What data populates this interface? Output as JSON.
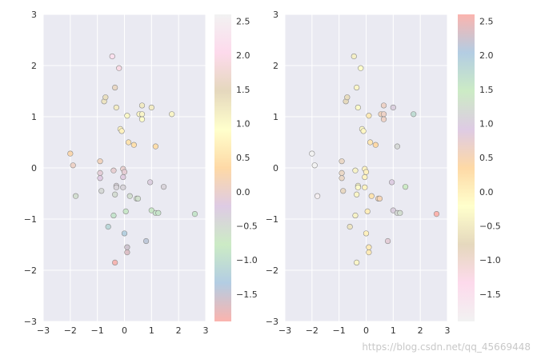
{
  "watermark": "https://blog.csdn.net/qq_45669448",
  "chart_data": [
    {
      "type": "scatter",
      "colormap": "Pastel1 (reversed)",
      "colormap_stops": [
        "#fbb4ae",
        "#b3cde3",
        "#ccebc5",
        "#decbe4",
        "#fed9a6",
        "#ffffcc",
        "#e5d8bd",
        "#fddaec",
        "#f2f2f2"
      ],
      "background_color": "#eaeaf2",
      "grid": true,
      "xlim": [
        -3,
        3
      ],
      "ylim": [
        -3,
        3
      ],
      "xticks": [
        "−3",
        "−2",
        "−1",
        "0",
        "1",
        "2",
        "3"
      ],
      "yticks": [
        "−3",
        "−2",
        "−1",
        "0",
        "1",
        "2",
        "3"
      ],
      "colorbar": {
        "range": [
          -1.9,
          2.6
        ],
        "tick_values": [
          2.5,
          2.0,
          1.5,
          1.0,
          0.5,
          0.0,
          -0.5,
          -1.0,
          -1.5
        ],
        "tick_labels": [
          "2.5",
          "2.0",
          "1.5",
          "1.0",
          "0.5",
          "0.0",
          "−0.5",
          "−1.0",
          "−1.5"
        ]
      },
      "color_by": "y",
      "points": [
        {
          "x": -2.0,
          "y": 0.28
        },
        {
          "x": -1.9,
          "y": 0.05
        },
        {
          "x": -1.8,
          "y": -0.55
        },
        {
          "x": -0.9,
          "y": 0.13
        },
        {
          "x": -0.9,
          "y": -0.1
        },
        {
          "x": -0.9,
          "y": -0.2
        },
        {
          "x": -0.85,
          "y": -0.45
        },
        {
          "x": -0.75,
          "y": 1.3
        },
        {
          "x": -0.7,
          "y": 1.38
        },
        {
          "x": -0.6,
          "y": -1.15
        },
        {
          "x": -0.45,
          "y": 2.18
        },
        {
          "x": -0.4,
          "y": -0.05
        },
        {
          "x": -0.4,
          "y": -0.93
        },
        {
          "x": -0.35,
          "y": 1.57
        },
        {
          "x": -0.3,
          "y": 1.18
        },
        {
          "x": -0.3,
          "y": -0.35
        },
        {
          "x": -0.3,
          "y": -0.38
        },
        {
          "x": -0.35,
          "y": -0.52
        },
        {
          "x": -0.35,
          "y": -1.85
        },
        {
          "x": -0.2,
          "y": 1.95
        },
        {
          "x": -0.15,
          "y": 0.76
        },
        {
          "x": -0.1,
          "y": 0.72
        },
        {
          "x": -0.05,
          "y": -0.02
        },
        {
          "x": -0.05,
          "y": -0.38
        },
        {
          "x": 0.0,
          "y": -0.08
        },
        {
          "x": -0.05,
          "y": -0.18
        },
        {
          "x": 0.0,
          "y": -1.28
        },
        {
          "x": 0.05,
          "y": -0.85
        },
        {
          "x": 0.1,
          "y": 1.02
        },
        {
          "x": 0.15,
          "y": 0.5
        },
        {
          "x": 0.1,
          "y": -1.55
        },
        {
          "x": 0.1,
          "y": -1.65
        },
        {
          "x": 0.2,
          "y": -0.55
        },
        {
          "x": 0.35,
          "y": 0.45
        },
        {
          "x": 0.45,
          "y": -0.6
        },
        {
          "x": 0.5,
          "y": -0.6
        },
        {
          "x": 0.55,
          "y": 1.05
        },
        {
          "x": 0.65,
          "y": 1.22
        },
        {
          "x": 0.65,
          "y": 1.05
        },
        {
          "x": 0.65,
          "y": 0.95
        },
        {
          "x": 0.8,
          "y": -1.43
        },
        {
          "x": 0.95,
          "y": -0.28
        },
        {
          "x": 1.0,
          "y": 1.18
        },
        {
          "x": 1.0,
          "y": -0.83
        },
        {
          "x": 1.15,
          "y": 0.42
        },
        {
          "x": 1.15,
          "y": -0.88
        },
        {
          "x": 1.25,
          "y": -0.88
        },
        {
          "x": 1.45,
          "y": -0.37
        },
        {
          "x": 1.75,
          "y": 1.05
        },
        {
          "x": 2.6,
          "y": -0.9
        }
      ]
    },
    {
      "type": "scatter",
      "colormap": "Pastel1",
      "colormap_stops": [
        "#f2f2f2",
        "#fddaec",
        "#e5d8bd",
        "#ffffcc",
        "#fed9a6",
        "#decbe4",
        "#ccebc5",
        "#b3cde3",
        "#fbb4ae"
      ],
      "background_color": "#eaeaf2",
      "grid": true,
      "xlim": [
        -3,
        3
      ],
      "ylim": [
        -3,
        3
      ],
      "xticks": [
        "−3",
        "−2",
        "−1",
        "0",
        "1",
        "2",
        "3"
      ],
      "yticks": [
        "−3",
        "−2",
        "−1",
        "0",
        "1",
        "2",
        "3"
      ],
      "colorbar": {
        "range": [
          -1.9,
          2.6
        ],
        "tick_values": [
          2.5,
          2.0,
          1.5,
          1.0,
          0.5,
          0.0,
          -0.5,
          -1.0,
          -1.5
        ],
        "tick_labels": [
          "2.5",
          "2.0",
          "1.5",
          "1.0",
          "0.5",
          "0.0",
          "−0.5",
          "−1.0",
          "−1.5"
        ]
      },
      "color_by": "x",
      "points": [
        {
          "x": -2.0,
          "y": 0.28
        },
        {
          "x": -1.9,
          "y": 0.05
        },
        {
          "x": -1.8,
          "y": -0.55
        },
        {
          "x": -0.9,
          "y": 0.13
        },
        {
          "x": -0.9,
          "y": -0.1
        },
        {
          "x": -0.9,
          "y": -0.2
        },
        {
          "x": -0.85,
          "y": -0.45
        },
        {
          "x": -0.75,
          "y": 1.3
        },
        {
          "x": -0.7,
          "y": 1.38
        },
        {
          "x": -0.6,
          "y": -1.15
        },
        {
          "x": -0.45,
          "y": 2.18
        },
        {
          "x": -0.4,
          "y": -0.05
        },
        {
          "x": -0.4,
          "y": -0.93
        },
        {
          "x": -0.35,
          "y": 1.57
        },
        {
          "x": -0.3,
          "y": 1.18
        },
        {
          "x": -0.3,
          "y": -0.35
        },
        {
          "x": -0.3,
          "y": -0.38
        },
        {
          "x": -0.35,
          "y": -0.52
        },
        {
          "x": -0.35,
          "y": -1.85
        },
        {
          "x": -0.2,
          "y": 1.95
        },
        {
          "x": -0.15,
          "y": 0.76
        },
        {
          "x": -0.1,
          "y": 0.72
        },
        {
          "x": -0.05,
          "y": -0.02
        },
        {
          "x": -0.05,
          "y": -0.38
        },
        {
          "x": 0.0,
          "y": -0.08
        },
        {
          "x": -0.05,
          "y": -0.18
        },
        {
          "x": 0.0,
          "y": -1.28
        },
        {
          "x": 0.05,
          "y": -0.85
        },
        {
          "x": 0.1,
          "y": 1.02
        },
        {
          "x": 0.15,
          "y": 0.5
        },
        {
          "x": 0.1,
          "y": -1.55
        },
        {
          "x": 0.1,
          "y": -1.65
        },
        {
          "x": 0.2,
          "y": -0.55
        },
        {
          "x": 0.35,
          "y": 0.45
        },
        {
          "x": 0.45,
          "y": -0.6
        },
        {
          "x": 0.5,
          "y": -0.6
        },
        {
          "x": 0.55,
          "y": 1.05
        },
        {
          "x": 0.65,
          "y": 1.22
        },
        {
          "x": 0.65,
          "y": 1.05
        },
        {
          "x": 0.65,
          "y": 0.95
        },
        {
          "x": 0.8,
          "y": -1.43
        },
        {
          "x": 0.95,
          "y": -0.28
        },
        {
          "x": 1.0,
          "y": 1.18
        },
        {
          "x": 1.0,
          "y": -0.83
        },
        {
          "x": 1.15,
          "y": 0.42
        },
        {
          "x": 1.15,
          "y": -0.88
        },
        {
          "x": 1.25,
          "y": -0.88
        },
        {
          "x": 1.45,
          "y": -0.37
        },
        {
          "x": 1.75,
          "y": 1.05
        },
        {
          "x": 2.6,
          "y": -0.9
        }
      ]
    }
  ]
}
